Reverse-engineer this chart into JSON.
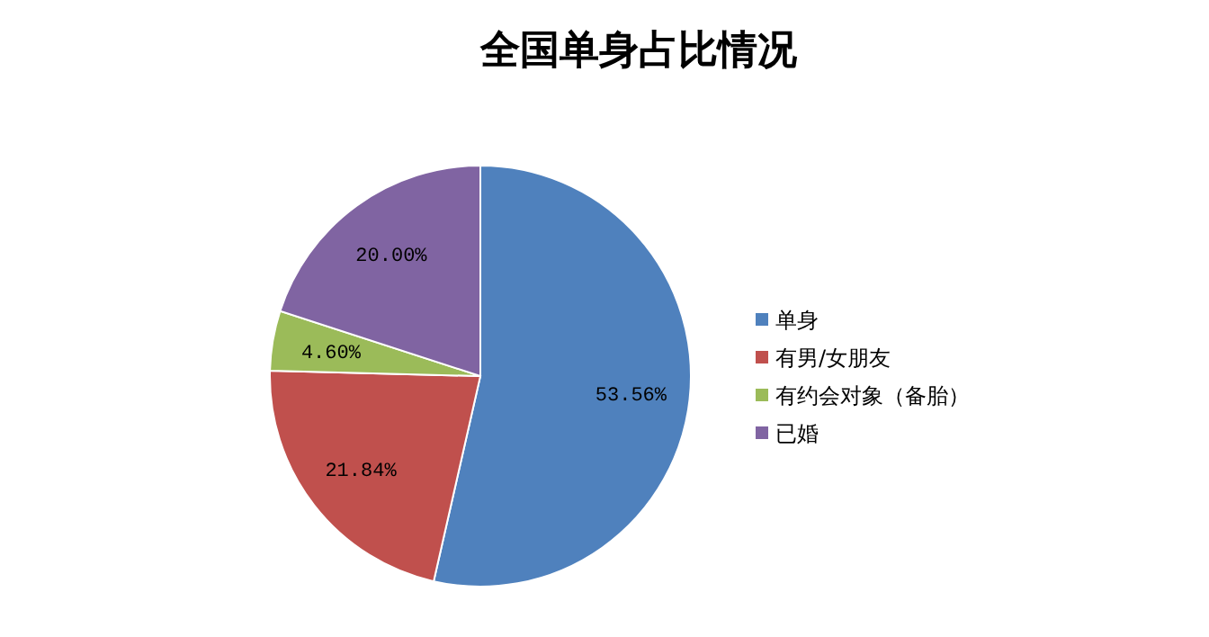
{
  "chart_data": {
    "type": "pie",
    "title": "全国单身占比情况",
    "categories": [
      "单身",
      "有男/女朋友",
      "有约会对象（备胎）",
      "已婚"
    ],
    "values": [
      53.56,
      21.84,
      4.6,
      20.0
    ],
    "colors": [
      "#4f81bd",
      "#c0504d",
      "#9bbb59",
      "#8064a2"
    ],
    "value_labels": [
      "53.56%",
      "21.84%",
      "4.60%",
      "20.00%"
    ],
    "legend": "right"
  }
}
